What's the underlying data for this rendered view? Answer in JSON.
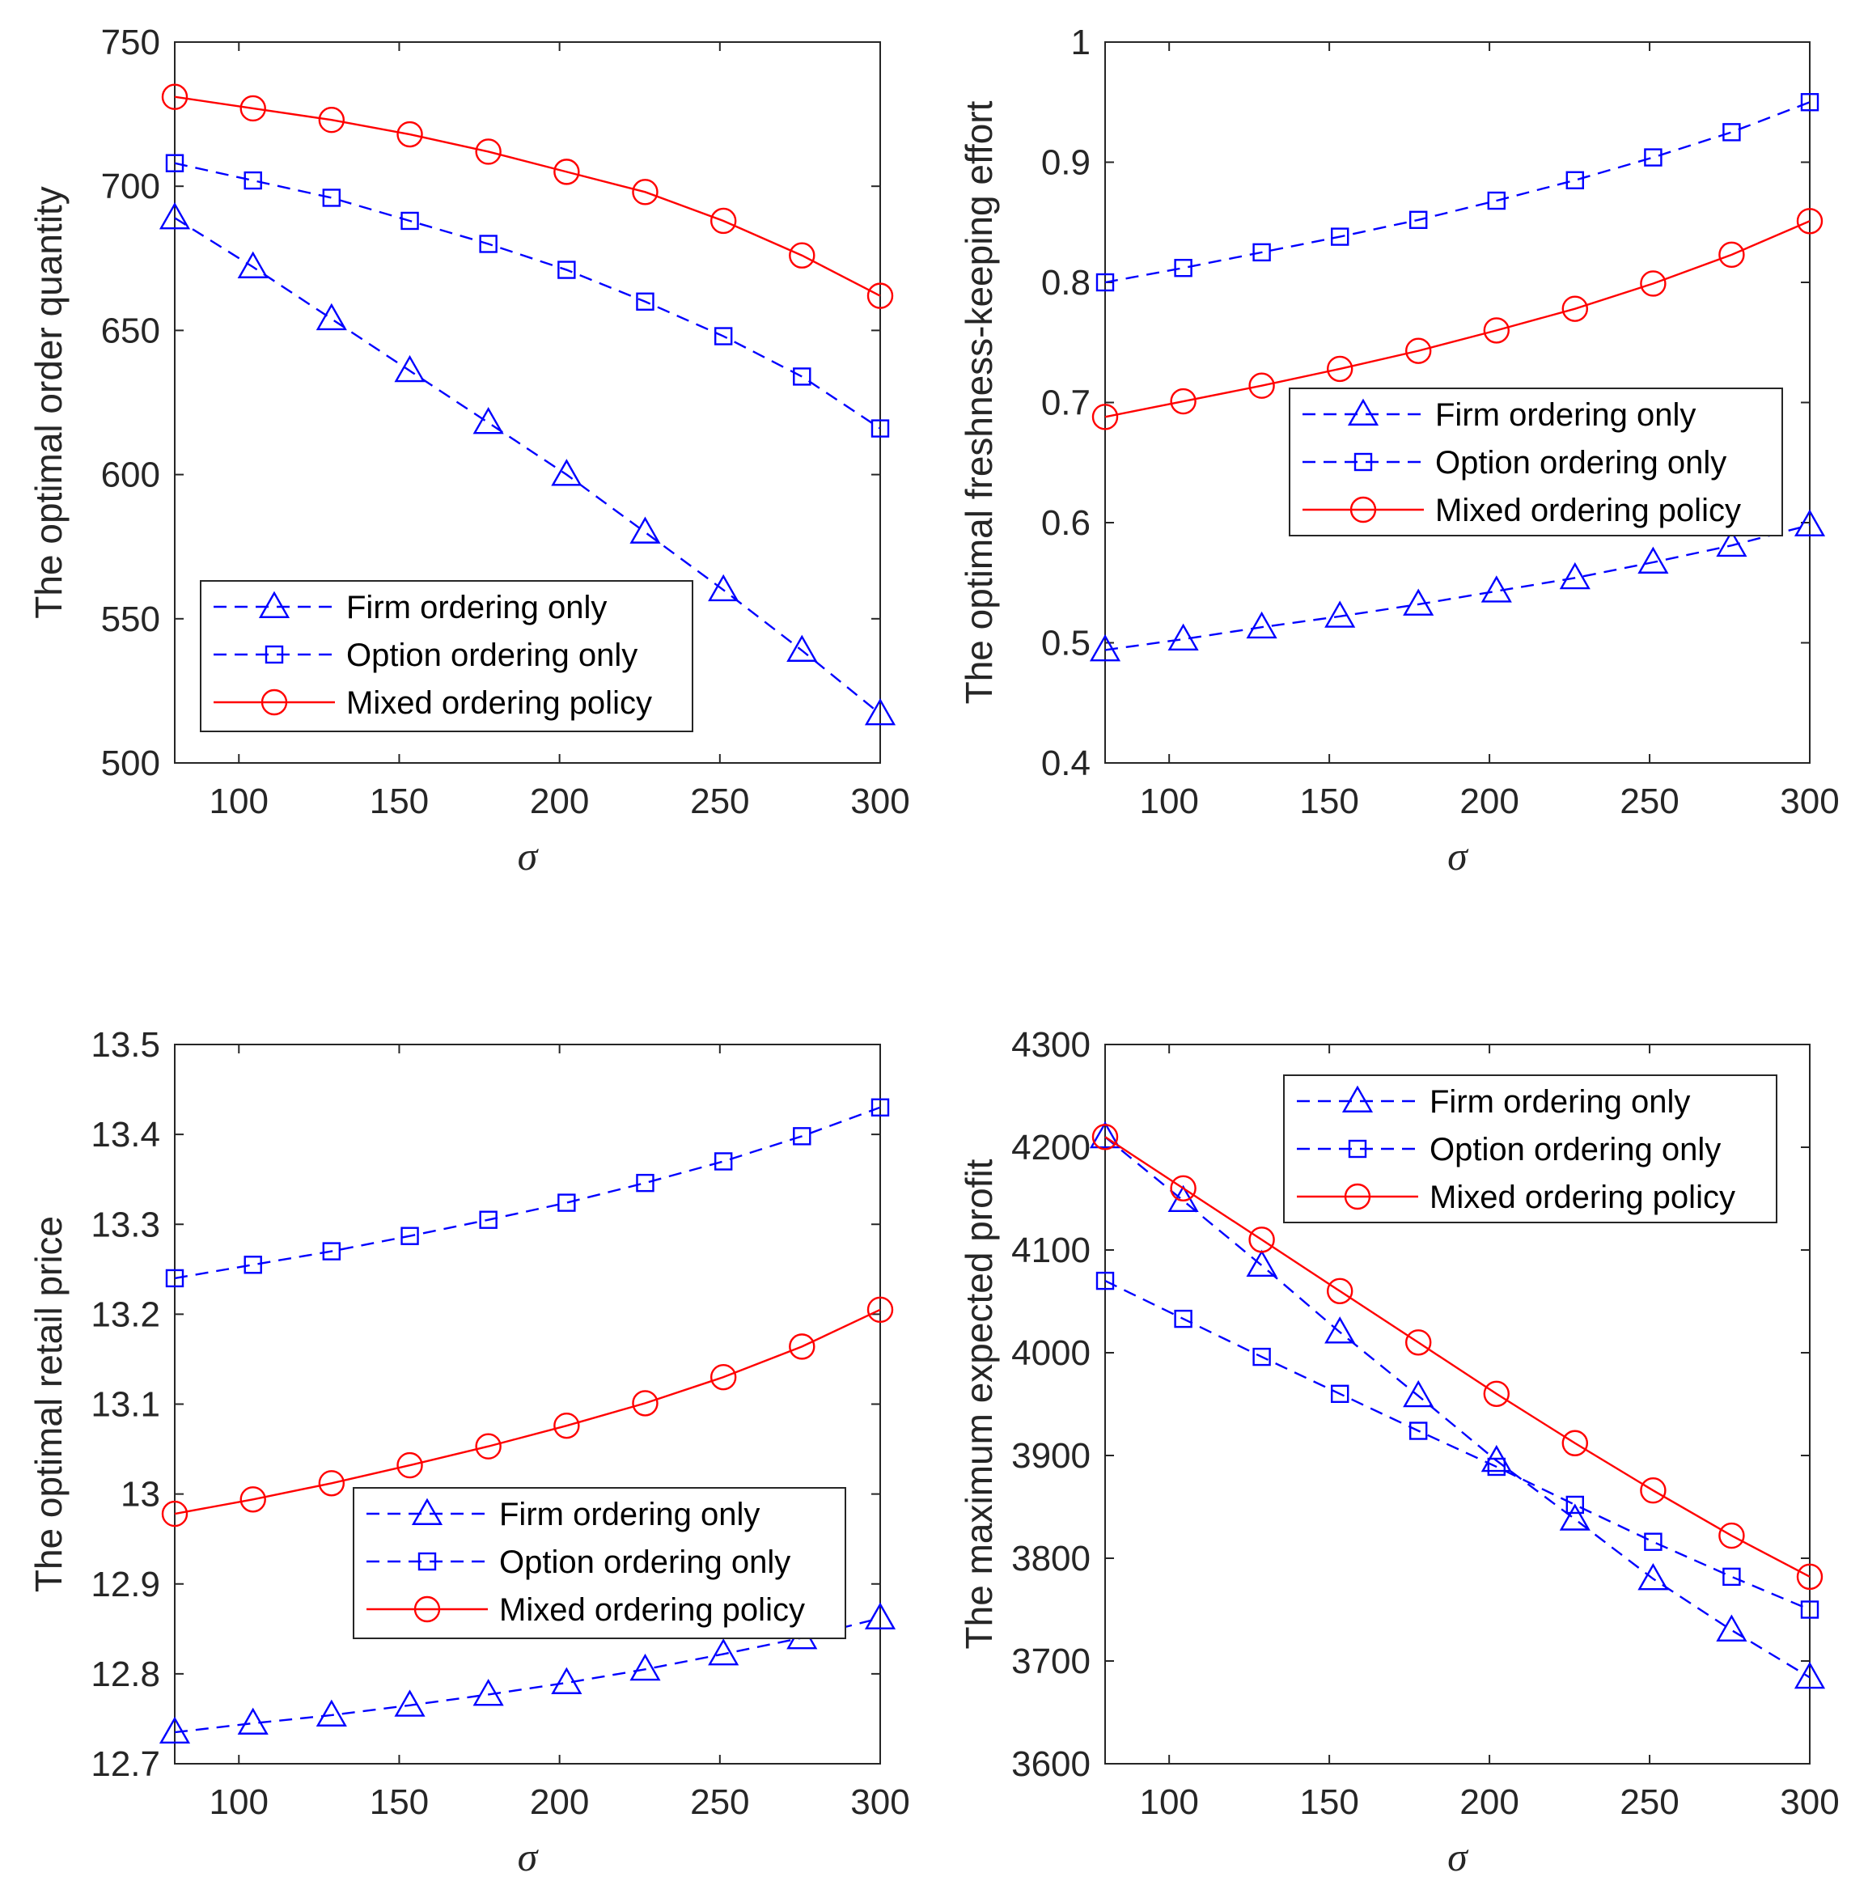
{
  "chart_data": [
    {
      "type": "line",
      "ylabel": "The optimal order quantity",
      "xlabel": "σ",
      "xlim": [
        80,
        300
      ],
      "ylim": [
        500,
        750
      ],
      "xticks": [
        100,
        150,
        200,
        250,
        300
      ],
      "yticks": [
        500,
        550,
        600,
        650,
        700,
        750
      ],
      "ytick_labels": [
        "500",
        "550",
        "600",
        "650",
        "700",
        "750"
      ],
      "legend_position": "bottom-left",
      "x": [
        80,
        104.4,
        128.9,
        153.3,
        177.8,
        202.2,
        226.7,
        251.1,
        275.6,
        300
      ],
      "series": [
        {
          "name": "Firm ordering only",
          "marker": "triangle",
          "style": "dashed",
          "color": "#0000ff",
          "values": [
            689,
            672,
            654,
            636,
            618,
            600,
            580,
            560,
            539,
            517
          ]
        },
        {
          "name": "Option ordering only",
          "marker": "square",
          "style": "dashed",
          "color": "#0000ff",
          "values": [
            708,
            702,
            696,
            688,
            680,
            671,
            660,
            648,
            634,
            616
          ]
        },
        {
          "name": "Mixed ordering policy",
          "marker": "circle",
          "style": "solid",
          "color": "#ff0000",
          "values": [
            731,
            727,
            723,
            718,
            712,
            705,
            698,
            688,
            676,
            662
          ]
        }
      ]
    },
    {
      "type": "line",
      "ylabel": "The optimal freshness-keeping effort",
      "xlabel": "σ",
      "xlim": [
        80,
        300
      ],
      "ylim": [
        0.4,
        1
      ],
      "xticks": [
        100,
        150,
        200,
        250,
        300
      ],
      "yticks": [
        0.4,
        0.5,
        0.6,
        0.7,
        0.8,
        0.9,
        1
      ],
      "ytick_labels": [
        "0.4",
        "0.5",
        "0.6",
        "0.7",
        "0.8",
        "0.9",
        "1"
      ],
      "legend_position": "middle-right",
      "x": [
        80,
        104.4,
        128.9,
        153.3,
        177.8,
        202.2,
        226.7,
        251.1,
        275.6,
        300
      ],
      "series": [
        {
          "name": "Firm ordering only",
          "marker": "triangle",
          "style": "dashed",
          "color": "#0000ff",
          "values": [
            0.494,
            0.503,
            0.513,
            0.522,
            0.532,
            0.543,
            0.554,
            0.567,
            0.581,
            0.598
          ]
        },
        {
          "name": "Option ordering only",
          "marker": "square",
          "style": "dashed",
          "color": "#0000ff",
          "values": [
            0.8,
            0.812,
            0.825,
            0.838,
            0.852,
            0.868,
            0.885,
            0.904,
            0.925,
            0.95
          ]
        },
        {
          "name": "Mixed ordering policy",
          "marker": "circle",
          "style": "solid",
          "color": "#ff0000",
          "values": [
            0.688,
            0.701,
            0.714,
            0.728,
            0.743,
            0.76,
            0.778,
            0.799,
            0.823,
            0.851
          ]
        }
      ]
    },
    {
      "type": "line",
      "ylabel": "The optimal retail price",
      "xlabel": "σ",
      "xlim": [
        80,
        300
      ],
      "ylim": [
        12.7,
        13.5
      ],
      "xticks": [
        100,
        150,
        200,
        250,
        300
      ],
      "yticks": [
        12.7,
        12.8,
        12.9,
        13,
        13.1,
        13.2,
        13.3,
        13.4,
        13.5
      ],
      "ytick_labels": [
        "12.7",
        "12.8",
        "12.9",
        "13",
        "13.1",
        "13.2",
        "13.3",
        "13.4",
        "13.5"
      ],
      "legend_position": "bottom-right",
      "x": [
        80,
        104.4,
        128.9,
        153.3,
        177.8,
        202.2,
        226.7,
        251.1,
        275.6,
        300
      ],
      "series": [
        {
          "name": "Firm ordering only",
          "marker": "triangle",
          "style": "dashed",
          "color": "#0000ff",
          "values": [
            12.735,
            12.745,
            12.754,
            12.765,
            12.777,
            12.79,
            12.805,
            12.822,
            12.84,
            12.862
          ]
        },
        {
          "name": "Option ordering only",
          "marker": "square",
          "style": "dashed",
          "color": "#0000ff",
          "values": [
            13.24,
            13.255,
            13.27,
            13.287,
            13.305,
            13.324,
            13.346,
            13.37,
            13.398,
            13.43
          ]
        },
        {
          "name": "Mixed ordering policy",
          "marker": "circle",
          "style": "solid",
          "color": "#ff0000",
          "values": [
            12.978,
            12.994,
            13.012,
            13.032,
            13.053,
            13.076,
            13.101,
            13.13,
            13.164,
            13.205
          ]
        }
      ]
    },
    {
      "type": "line",
      "ylabel": "The maximum expected profit",
      "xlabel": "σ",
      "xlim": [
        80,
        300
      ],
      "ylim": [
        3600,
        4300
      ],
      "xticks": [
        100,
        150,
        200,
        250,
        300
      ],
      "yticks": [
        3600,
        3700,
        3800,
        3900,
        4000,
        4100,
        4200,
        4300
      ],
      "ytick_labels": [
        "3600",
        "3700",
        "3800",
        "3900",
        "4000",
        "4100",
        "4200",
        "4300"
      ],
      "legend_position": "top-right",
      "x": [
        80,
        104.4,
        128.9,
        153.3,
        177.8,
        202.2,
        226.7,
        251.1,
        275.6,
        300
      ],
      "series": [
        {
          "name": "Firm ordering only",
          "marker": "triangle",
          "style": "dashed",
          "color": "#0000ff",
          "values": [
            4210,
            4148,
            4085,
            4020,
            3958,
            3895,
            3838,
            3780,
            3730,
            3684
          ]
        },
        {
          "name": "Option ordering only",
          "marker": "square",
          "style": "dashed",
          "color": "#0000ff",
          "values": [
            4070,
            4033,
            3996,
            3960,
            3924,
            3889,
            3852,
            3816,
            3782,
            3750
          ]
        },
        {
          "name": "Mixed ordering policy",
          "marker": "circle",
          "style": "solid",
          "color": "#ff0000",
          "values": [
            4210,
            4160,
            4110,
            4060,
            4010,
            3960,
            3912,
            3866,
            3822,
            3782
          ]
        }
      ]
    }
  ]
}
